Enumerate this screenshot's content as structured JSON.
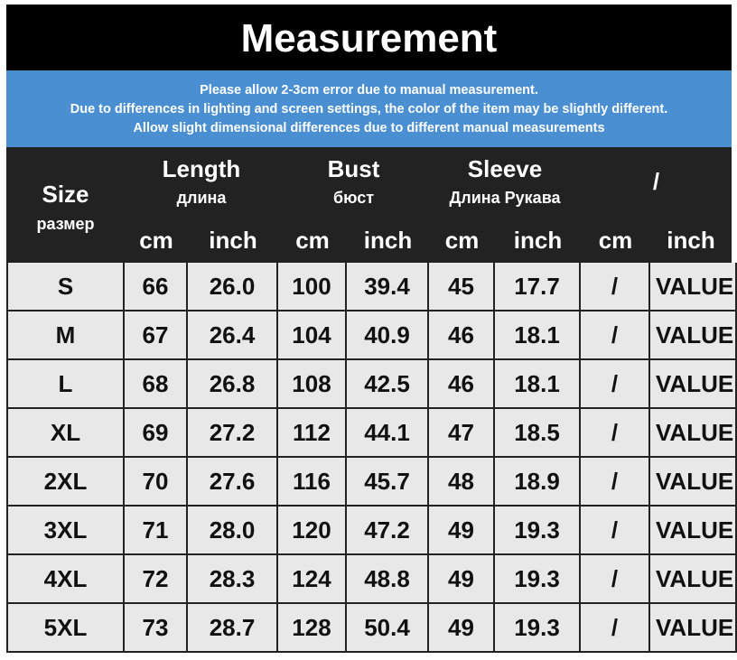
{
  "header": {
    "title": "Measurement"
  },
  "notice": {
    "lines": [
      "Please allow 2-3cm error due to manual measurement.",
      "Due to differences in lighting and screen settings, the color of the item may be slightly different.",
      "Allow slight dimensional differences due to different manual measurements"
    ]
  },
  "table": {
    "size_header": {
      "label": "Size",
      "sublabel": "размер"
    },
    "groups": [
      {
        "label": "Length",
        "sublabel": "длина"
      },
      {
        "label": "Bust",
        "sublabel": "бюст"
      },
      {
        "label": "Sleeve",
        "sublabel": "Длина Рукава"
      },
      {
        "label": "/"
      }
    ],
    "units": [
      "cm",
      "inch",
      "cm",
      "inch",
      "cm",
      "inch",
      "cm",
      "inch"
    ],
    "rows": [
      [
        "S",
        "66",
        "26.0",
        "100",
        "39.4",
        "45",
        "17.7",
        "/",
        "VALUE"
      ],
      [
        "M",
        "67",
        "26.4",
        "104",
        "40.9",
        "46",
        "18.1",
        "/",
        "VALUE"
      ],
      [
        "L",
        "68",
        "26.8",
        "108",
        "42.5",
        "46",
        "18.1",
        "/",
        "VALUE"
      ],
      [
        "XL",
        "69",
        "27.2",
        "112",
        "44.1",
        "47",
        "18.5",
        "/",
        "VALUE"
      ],
      [
        "2XL",
        "70",
        "27.6",
        "116",
        "45.7",
        "48",
        "18.9",
        "/",
        "VALUE"
      ],
      [
        "3XL",
        "71",
        "28.0",
        "120",
        "47.2",
        "49",
        "19.3",
        "/",
        "VALUE"
      ],
      [
        "4XL",
        "72",
        "28.3",
        "124",
        "48.8",
        "49",
        "19.3",
        "/",
        "VALUE"
      ],
      [
        "5XL",
        "73",
        "28.7",
        "128",
        "50.4",
        "49",
        "19.3",
        "/",
        "VALUE"
      ]
    ]
  }
}
